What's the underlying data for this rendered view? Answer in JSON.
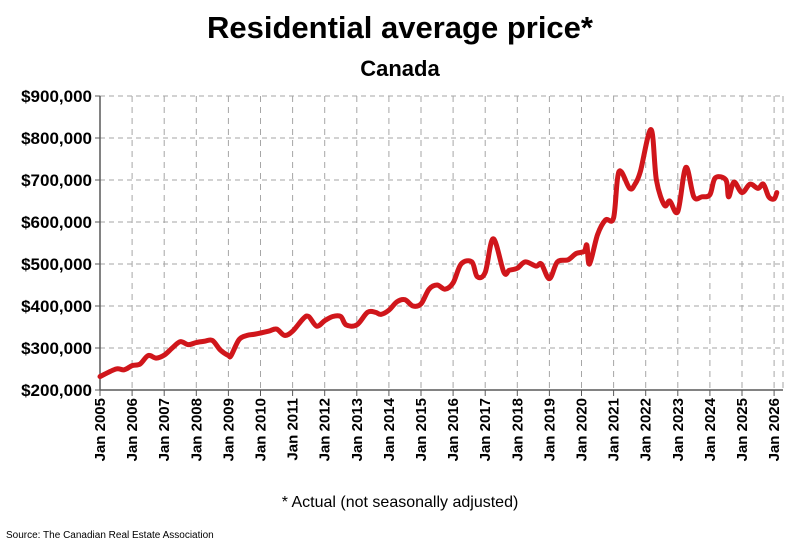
{
  "chart_data": {
    "type": "line",
    "title": "Residential average price*",
    "subtitle": "Canada",
    "footnote": "* Actual (not seasonally adjusted)",
    "source": "Source: The Canadian Real Estate Association",
    "ylim": [
      200000,
      900000
    ],
    "yticks": [
      "$200,000",
      "$300,000",
      "$400,000",
      "$500,000",
      "$600,000",
      "$700,000",
      "$800,000",
      "$900,000"
    ],
    "xlim": [
      "2005-01",
      "2026-03"
    ],
    "xticks": [
      "Jan 2005",
      "Jan 2006",
      "Jan 2007",
      "Jan 2008",
      "Jan 2009",
      "Jan 2010",
      "Jan 2011",
      "Jan 2012",
      "Jan 2013",
      "Jan 2014",
      "Jan 2015",
      "Jan 2016",
      "Jan 2017",
      "Jan 2018",
      "Jan 2019",
      "Jan 2020",
      "Jan 2021",
      "Jan 2022",
      "Jan 2023",
      "Jan 2024",
      "Jan 2025",
      "Jan 2026"
    ],
    "grid": true,
    "line_color": "#d0161b",
    "series": [
      {
        "x": [
          "2005-01",
          "2005-07",
          "2005-10",
          "2006-01",
          "2006-04",
          "2006-07",
          "2006-10",
          "2007-01",
          "2007-04",
          "2007-07",
          "2007-10",
          "2008-01",
          "2008-04",
          "2008-07",
          "2008-10",
          "2009-01",
          "2009-02",
          "2009-05",
          "2009-08",
          "2009-11",
          "2010-04",
          "2010-07",
          "2010-10",
          "2011-01",
          "2011-05",
          "2011-07",
          "2011-10",
          "2012-01",
          "2012-04",
          "2012-07",
          "2012-09",
          "2013-01",
          "2013-05",
          "2013-08",
          "2013-10",
          "2014-01",
          "2014-04",
          "2014-07",
          "2014-10",
          "2015-01",
          "2015-04",
          "2015-07",
          "2015-10",
          "2016-01",
          "2016-04",
          "2016-08",
          "2016-10",
          "2017-01",
          "2017-04",
          "2017-08",
          "2017-10",
          "2018-01",
          "2018-04",
          "2018-08",
          "2018-10",
          "2019-01",
          "2019-04",
          "2019-08",
          "2019-11",
          "2020-02",
          "2020-03",
          "2020-04",
          "2020-07",
          "2020-10",
          "2021-01",
          "2021-03",
          "2021-07",
          "2021-09",
          "2021-11",
          "2022-03",
          "2022-05",
          "2022-08",
          "2022-10",
          "2023-01",
          "2023-04",
          "2023-07",
          "2023-10",
          "2024-01",
          "2024-03",
          "2024-07",
          "2024-08",
          "2024-10",
          "2025-01",
          "2025-04",
          "2025-07",
          "2025-09",
          "2025-11",
          "2026-01",
          "2026-02"
        ],
        "y": [
          232000,
          250000,
          248000,
          258000,
          262000,
          282000,
          276000,
          283000,
          300000,
          315000,
          308000,
          313000,
          316000,
          318000,
          295000,
          282000,
          282000,
          320000,
          330000,
          333000,
          340000,
          345000,
          330000,
          340000,
          370000,
          375000,
          352000,
          365000,
          375000,
          375000,
          355000,
          355000,
          385000,
          385000,
          380000,
          390000,
          410000,
          415000,
          400000,
          405000,
          440000,
          450000,
          440000,
          455000,
          500000,
          505000,
          470000,
          480000,
          560000,
          480000,
          485000,
          490000,
          505000,
          495000,
          500000,
          465000,
          505000,
          510000,
          525000,
          530000,
          545000,
          500000,
          570000,
          605000,
          610000,
          720000,
          680000,
          690000,
          720000,
          820000,
          700000,
          640000,
          650000,
          625000,
          730000,
          660000,
          660000,
          665000,
          705000,
          700000,
          660000,
          695000,
          670000,
          690000,
          680000,
          690000,
          660000,
          655000,
          670000
        ]
      }
    ]
  }
}
